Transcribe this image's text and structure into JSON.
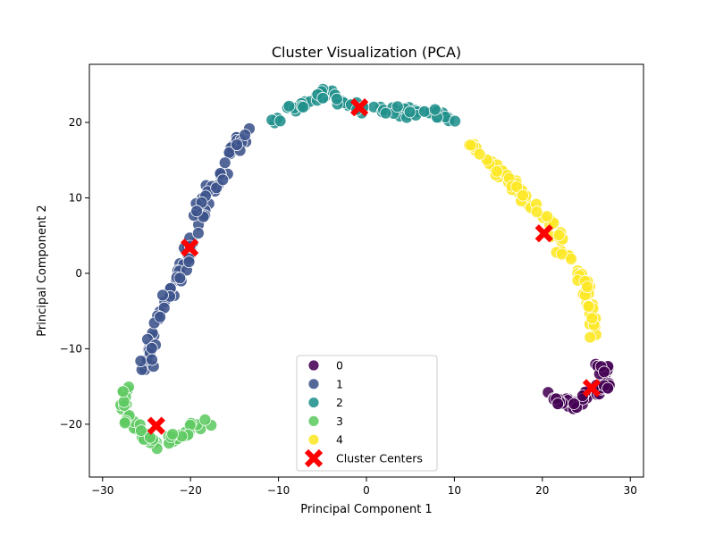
{
  "chart_data": {
    "type": "scatter",
    "title": "Cluster Visualization (PCA)",
    "xlabel": "Principal Component 1",
    "ylabel": "Principal Component 2",
    "xlim": [
      -31.5,
      31.5
    ],
    "ylim": [
      -27,
      27.7
    ],
    "xticks": [
      -30,
      -20,
      -10,
      0,
      10,
      20,
      30
    ],
    "yticks": [
      -20,
      -10,
      0,
      10,
      20
    ],
    "grid": false,
    "legend_position": "bottom-center",
    "colors": {
      "0": "#440154",
      "1": "#3b528b",
      "2": "#21918c",
      "3": "#5ec962",
      "4": "#fde725",
      "centers": "#ff0000"
    },
    "anchors": {
      "0": [
        [
          26.3,
          -11.6
        ],
        [
          27.7,
          -14.8
        ],
        [
          23.2,
          -17.3
        ],
        [
          21.2,
          -16.7
        ]
      ],
      "1": [
        [
          -25.2,
          -12.4
        ],
        [
          -23.6,
          -5.6
        ],
        [
          -20.3,
          1.8
        ],
        [
          -19,
          8.6
        ],
        [
          -16.8,
          12.4
        ],
        [
          -14.6,
          17.6
        ],
        [
          -12.8,
          19
        ]
      ],
      "2": [
        [
          -10.1,
          20.4
        ],
        [
          -7.3,
          22.3
        ],
        [
          -4.6,
          23.9
        ],
        [
          -1.5,
          22.5
        ],
        [
          1.5,
          21.5
        ],
        [
          3.6,
          21.2
        ],
        [
          7.1,
          21.6
        ],
        [
          10.1,
          20.1
        ]
      ],
      "3": [
        [
          -27.3,
          -15.6
        ],
        [
          -27.7,
          -18.4
        ],
        [
          -26.2,
          -20.4
        ],
        [
          -24.3,
          -22.9
        ],
        [
          -20.7,
          -21.2
        ],
        [
          -17.8,
          -19.6
        ]
      ],
      "4": [
        [
          11.4,
          17.8
        ],
        [
          13.4,
          15.2
        ],
        [
          16.6,
          12.1
        ],
        [
          18.4,
          9.4
        ],
        [
          21.2,
          6.3
        ],
        [
          22.5,
          2.3
        ],
        [
          24.9,
          -1.3
        ],
        [
          25.5,
          -5.3
        ],
        [
          26.1,
          -8.3
        ]
      ]
    },
    "points_per_cluster": {
      "0": 65,
      "1": 95,
      "2": 75,
      "3": 55,
      "4": 85
    },
    "series": [
      {
        "name": "0",
        "label": "0"
      },
      {
        "name": "1",
        "label": "1"
      },
      {
        "name": "2",
        "label": "2"
      },
      {
        "name": "3",
        "label": "3"
      },
      {
        "name": "4",
        "label": "4"
      }
    ],
    "centers": {
      "name": "Cluster Centers",
      "points": [
        {
          "cluster": "0",
          "x": 25.6,
          "y": -15.2
        },
        {
          "cluster": "1",
          "x": -20.1,
          "y": 3.4
        },
        {
          "cluster": "2",
          "x": -0.8,
          "y": 22.0
        },
        {
          "cluster": "3",
          "x": -23.9,
          "y": -20.2
        },
        {
          "cluster": "4",
          "x": 20.2,
          "y": 5.3
        }
      ]
    }
  }
}
